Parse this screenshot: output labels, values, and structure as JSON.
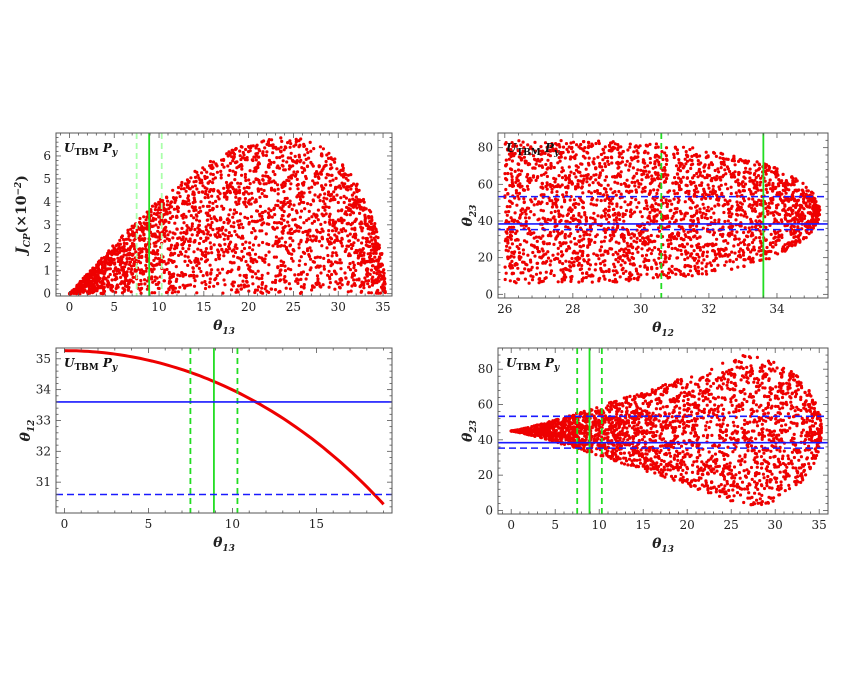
{
  "chart_data": [
    {
      "type": "scatter",
      "panel_label": {
        "main": "U",
        "sub": "TBM",
        "tail": "P",
        "tail_sub": "y"
      },
      "xlabel": {
        "main": "θ",
        "sub": "13"
      },
      "ylabel": {
        "main": "J",
        "sub": "CP",
        "tail": "(×10",
        "sup": "−2",
        "end": ")"
      },
      "xlim": [
        -1.5,
        36
      ],
      "ylim": [
        -0.1,
        7.0
      ],
      "xticks": [
        0,
        5,
        10,
        15,
        20,
        25,
        30,
        35
      ],
      "yticks": [
        0,
        1,
        2,
        3,
        4,
        5,
        6
      ],
      "region": {
        "x_min": 0,
        "x_max": 35.26,
        "x_peak": 24.4,
        "upper_peak": 6.8,
        "lower_max": 3.2
      },
      "vlines": [
        {
          "x": 8.9,
          "style": "solid",
          "color": "#22dd22"
        },
        {
          "x": 7.5,
          "style": "dashed",
          "color": "#aaffaa"
        },
        {
          "x": 10.3,
          "style": "dashed",
          "color": "#aaffaa"
        }
      ],
      "hlines": [],
      "point_color": "#ee0000",
      "n_points": 2600
    },
    {
      "type": "scatter",
      "panel_label": {
        "main": "U",
        "sub": "TBM",
        "tail": "P",
        "tail_sub": "y"
      },
      "xlabel": {
        "main": "θ",
        "sub": "12"
      },
      "ylabel": {
        "main": "θ",
        "sub": "23"
      },
      "xlim": [
        25.8,
        35.5
      ],
      "ylim": [
        -2,
        88
      ],
      "xticks": [
        26,
        28,
        30,
        32,
        34
      ],
      "yticks": [
        0,
        20,
        40,
        60,
        80
      ],
      "region": {
        "x_min": 26.0,
        "x_max": 35.26,
        "center": 45,
        "half_width_at_min": 39
      },
      "vlines": [
        {
          "x": 33.6,
          "style": "solid",
          "color": "#22dd22"
        },
        {
          "x": 30.6,
          "style": "dashed",
          "color": "#22dd22"
        }
      ],
      "hlines": [
        {
          "y": 38.4,
          "style": "solid",
          "color": "#1a1aff"
        },
        {
          "y": 35.3,
          "style": "dashed",
          "color": "#1a1aff"
        },
        {
          "y": 53.3,
          "style": "dashed",
          "color": "#1a1aff"
        }
      ],
      "point_color": "#ee0000",
      "n_points": 2600
    },
    {
      "type": "line",
      "panel_label": {
        "main": "U",
        "sub": "TBM",
        "tail": "P",
        "tail_sub": "y"
      },
      "xlabel": {
        "main": "θ",
        "sub": "13"
      },
      "ylabel": {
        "main": "θ",
        "sub": "12"
      },
      "xlim": [
        -0.5,
        19.5
      ],
      "ylim": [
        30.0,
        35.35
      ],
      "xticks": [
        0,
        5,
        10,
        15
      ],
      "yticks": [
        31,
        32,
        33,
        34,
        35
      ],
      "curve": {
        "x_start": 0,
        "x_end": 19.0
      },
      "vlines": [
        {
          "x": 8.9,
          "style": "solid",
          "color": "#22dd22"
        },
        {
          "x": 7.5,
          "style": "dashed",
          "color": "#22dd22"
        },
        {
          "x": 10.3,
          "style": "dashed",
          "color": "#22dd22"
        }
      ],
      "hlines": [
        {
          "y": 33.6,
          "style": "solid",
          "color": "#1a1aff"
        },
        {
          "y": 30.6,
          "style": "dashed",
          "color": "#1a1aff"
        }
      ],
      "line_color": "#ee0000"
    },
    {
      "type": "scatter",
      "panel_label": {
        "main": "U",
        "sub": "TBM",
        "tail": "P",
        "tail_sub": "y"
      },
      "xlabel": {
        "main": "θ",
        "sub": "13"
      },
      "ylabel": {
        "main": "θ",
        "sub": "23"
      },
      "xlim": [
        -1.5,
        36
      ],
      "ylim": [
        -2,
        92
      ],
      "xticks": [
        0,
        5,
        10,
        15,
        20,
        25,
        30,
        35
      ],
      "yticks": [
        0,
        20,
        40,
        60,
        80
      ],
      "region": {
        "x_min": 0,
        "x_max": 35.26,
        "center": 45,
        "x_peak": 26.5,
        "half_width_max": 43
      },
      "vlines": [
        {
          "x": 8.9,
          "style": "solid",
          "color": "#22dd22"
        },
        {
          "x": 7.5,
          "style": "dashed",
          "color": "#22dd22"
        },
        {
          "x": 10.3,
          "style": "dashed",
          "color": "#22dd22"
        }
      ],
      "hlines": [
        {
          "y": 38.4,
          "style": "solid",
          "color": "#1a1aff"
        },
        {
          "y": 35.3,
          "style": "dashed",
          "color": "#1a1aff"
        },
        {
          "y": 53.3,
          "style": "dashed",
          "color": "#1a1aff"
        }
      ],
      "point_color": "#ee0000",
      "n_points": 2600
    }
  ]
}
